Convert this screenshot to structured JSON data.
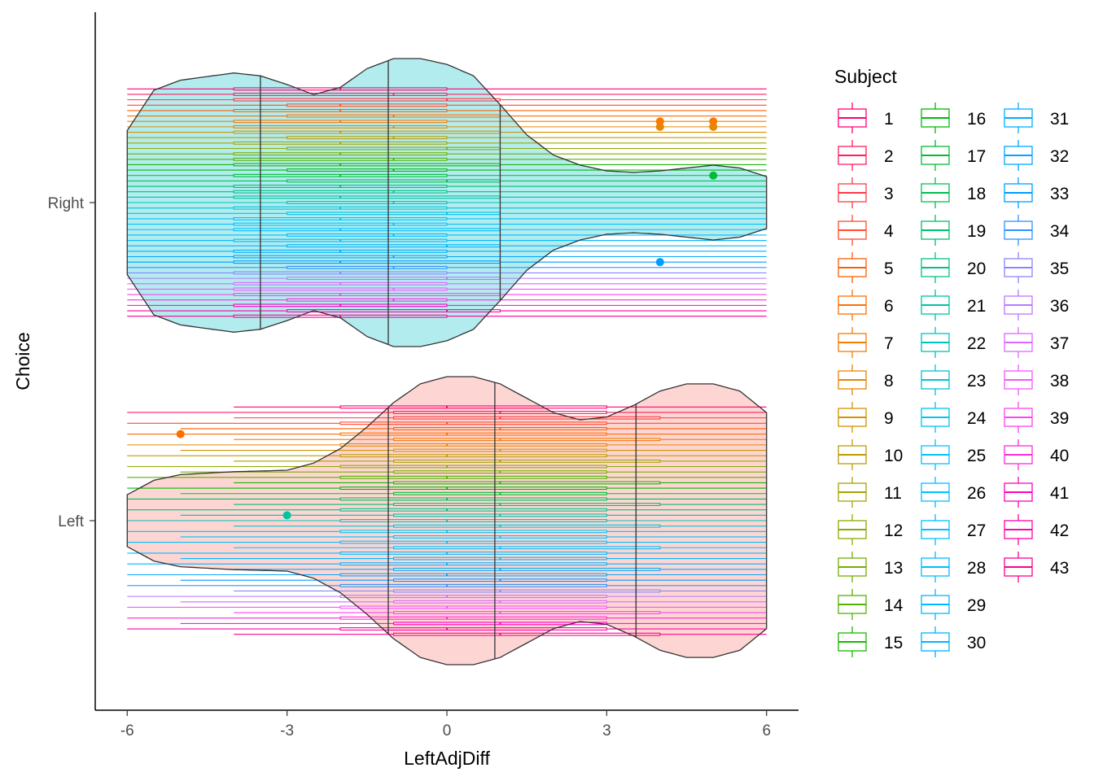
{
  "chart_data": {
    "type": "box-violin",
    "title": "",
    "xlabel": "LeftAdjDiff",
    "ylabel": "Choice",
    "xlim": [
      -6.6,
      6.6
    ],
    "x_ticks": [
      -6,
      -3,
      0,
      3,
      6
    ],
    "x_tick_labels": [
      "-6",
      "-3",
      "0",
      "3",
      "6"
    ],
    "categories": [
      "Left",
      "Right"
    ],
    "grid": false,
    "legend": {
      "title": "Subject",
      "placement": "right",
      "columns": 3,
      "entries": [
        "1",
        "2",
        "3",
        "4",
        "5",
        "6",
        "7",
        "8",
        "9",
        "10",
        "11",
        "12",
        "13",
        "14",
        "15",
        "16",
        "17",
        "18",
        "19",
        "20",
        "21",
        "22",
        "23",
        "24",
        "25",
        "26",
        "27",
        "28",
        "29",
        "30",
        "31",
        "32",
        "33",
        "34",
        "35",
        "36",
        "37",
        "38",
        "39",
        "40",
        "41",
        "42",
        "43"
      ]
    },
    "violins": [
      {
        "category": "Right",
        "fill": "#00c0c8",
        "fill_opacity": 0.3,
        "quantiles": [
          -3.5,
          -1.1,
          1.0
        ],
        "profile": [
          [
            -6,
            0.5
          ],
          [
            -5.5,
            0.78
          ],
          [
            -5,
            0.85
          ],
          [
            -4,
            0.9
          ],
          [
            -3.5,
            0.88
          ],
          [
            -3,
            0.82
          ],
          [
            -2.5,
            0.75
          ],
          [
            -2,
            0.8
          ],
          [
            -1.5,
            0.93
          ],
          [
            -1,
            1.0
          ],
          [
            -0.5,
            1.0
          ],
          [
            0,
            0.96
          ],
          [
            0.5,
            0.88
          ],
          [
            1,
            0.68
          ],
          [
            1.5,
            0.47
          ],
          [
            2,
            0.33
          ],
          [
            2.5,
            0.26
          ],
          [
            3,
            0.22
          ],
          [
            3.5,
            0.21
          ],
          [
            4,
            0.22
          ],
          [
            4.5,
            0.24
          ],
          [
            5,
            0.26
          ],
          [
            5.5,
            0.24
          ],
          [
            6,
            0.18
          ]
        ]
      },
      {
        "category": "Left",
        "fill": "#f8766d",
        "fill_opacity": 0.3,
        "quantiles": [
          -1.1,
          0.9,
          3.55
        ],
        "profile": [
          [
            -6,
            0.18
          ],
          [
            -5.5,
            0.28
          ],
          [
            -5,
            0.32
          ],
          [
            -4,
            0.34
          ],
          [
            -3,
            0.35
          ],
          [
            -2.5,
            0.4
          ],
          [
            -2,
            0.5
          ],
          [
            -1.5,
            0.65
          ],
          [
            -1,
            0.82
          ],
          [
            -0.5,
            0.95
          ],
          [
            0,
            1.0
          ],
          [
            0.5,
            1.0
          ],
          [
            1,
            0.95
          ],
          [
            1.5,
            0.85
          ],
          [
            2,
            0.75
          ],
          [
            2.5,
            0.7
          ],
          [
            3,
            0.72
          ],
          [
            3.5,
            0.8
          ],
          [
            4,
            0.9
          ],
          [
            4.5,
            0.95
          ],
          [
            5,
            0.95
          ],
          [
            5.5,
            0.9
          ],
          [
            6,
            0.75
          ]
        ]
      }
    ],
    "subject_boxes": {
      "Right": [
        [
          -6,
          -4,
          -2,
          0,
          6
        ],
        [
          -6,
          -4,
          -1,
          0,
          6
        ],
        [
          -6,
          -4,
          0,
          1,
          6
        ],
        [
          -6,
          -3,
          -2,
          0,
          6
        ],
        [
          -6,
          -4,
          -2,
          0,
          6
        ],
        [
          -6,
          -3,
          -1,
          1,
          6
        ],
        [
          -6,
          -4,
          -2,
          0,
          6
        ],
        [
          -6,
          -4,
          -1,
          0,
          6
        ],
        [
          -6,
          -4,
          -2,
          1,
          6
        ],
        [
          -6,
          -3,
          -1,
          0,
          6
        ],
        [
          -6,
          -4,
          -2,
          0,
          6
        ],
        [
          -6,
          -3,
          0,
          1,
          6
        ],
        [
          -6,
          -4,
          -2,
          0,
          6
        ],
        [
          -6,
          -4,
          -1,
          0,
          6
        ],
        [
          -6,
          -4,
          -2,
          1,
          6
        ],
        [
          -6,
          -3,
          -1,
          0,
          6
        ],
        [
          -6,
          -4,
          -2,
          0,
          6
        ],
        [
          -6,
          -3,
          0,
          1,
          6
        ],
        [
          -6,
          -4,
          -2,
          0,
          6
        ],
        [
          -6,
          -4,
          -1,
          0,
          6
        ],
        [
          -6,
          -4,
          -2,
          1,
          6
        ],
        [
          -6,
          -3,
          -1,
          0,
          6
        ],
        [
          -6,
          -4,
          -2,
          0,
          6
        ],
        [
          -6,
          -3,
          0,
          1,
          6
        ],
        [
          -6,
          -4,
          -2,
          0,
          6
        ],
        [
          -6,
          -4,
          -1,
          0,
          6
        ],
        [
          -6,
          -4,
          -2,
          1,
          6
        ],
        [
          -6,
          -3,
          -1,
          0,
          6
        ],
        [
          -6,
          -4,
          -2,
          0,
          6
        ],
        [
          -6,
          -3,
          0,
          1,
          6
        ],
        [
          -6,
          -4,
          -2,
          0,
          6
        ],
        [
          -6,
          -4,
          -1,
          0,
          6
        ],
        [
          -6,
          -4,
          -2,
          1,
          6
        ],
        [
          -6,
          -3,
          -1,
          0,
          6
        ],
        [
          -6,
          -4,
          -2,
          0,
          6
        ],
        [
          -6,
          -3,
          0,
          1,
          6
        ],
        [
          -6,
          -4,
          -2,
          0,
          6
        ],
        [
          -6,
          -4,
          -1,
          0,
          6
        ],
        [
          -6,
          -4,
          -2,
          1,
          6
        ],
        [
          -6,
          -3,
          -1,
          0,
          6
        ],
        [
          -6,
          -4,
          -2,
          0,
          6
        ],
        [
          -6,
          -3,
          0,
          1,
          6
        ],
        [
          -6,
          -4,
          -2,
          0,
          6
        ]
      ],
      "Left": [
        [
          -4,
          -2,
          0,
          3,
          6
        ],
        [
          -6,
          -1,
          1,
          3,
          6
        ],
        [
          -4,
          -1,
          1,
          4,
          6
        ],
        [
          -6,
          -2,
          0,
          3,
          6
        ],
        [
          -5,
          -1,
          1,
          3,
          6
        ],
        [
          -6,
          -2,
          0,
          3,
          6
        ],
        [
          -4,
          -1,
          1,
          4,
          6
        ],
        [
          -6,
          -2,
          0,
          3,
          6
        ],
        [
          -5,
          -1,
          1,
          3,
          6
        ],
        [
          -6,
          -2,
          0,
          3,
          6
        ],
        [
          -4,
          -1,
          1,
          4,
          6
        ],
        [
          -6,
          -2,
          0,
          3,
          6
        ],
        [
          -5,
          -1,
          1,
          3,
          6
        ],
        [
          -6,
          -2,
          0,
          3,
          6
        ],
        [
          -4,
          -1,
          1,
          4,
          6
        ],
        [
          -6,
          -2,
          0,
          3,
          6
        ],
        [
          -5,
          -1,
          1,
          3,
          6
        ],
        [
          -6,
          -2,
          0,
          3,
          6
        ],
        [
          -4,
          -1,
          1,
          4,
          6
        ],
        [
          -6,
          -2,
          0,
          3,
          6
        ],
        [
          -5,
          -1,
          1,
          3,
          6
        ],
        [
          -6,
          -2,
          0,
          3,
          6
        ],
        [
          -4,
          -1,
          1,
          4,
          6
        ],
        [
          -6,
          -2,
          0,
          3,
          6
        ],
        [
          -5,
          -1,
          1,
          3,
          6
        ],
        [
          -6,
          -2,
          0,
          3,
          6
        ],
        [
          -4,
          -1,
          1,
          4,
          6
        ],
        [
          -6,
          -2,
          0,
          3,
          6
        ],
        [
          -5,
          -1,
          1,
          3,
          6
        ],
        [
          -6,
          -2,
          0,
          3,
          6
        ],
        [
          -4,
          -1,
          1,
          4,
          6
        ],
        [
          -6,
          -2,
          0,
          3,
          6
        ],
        [
          -5,
          -1,
          1,
          3,
          6
        ],
        [
          -6,
          -2,
          0,
          3,
          6
        ],
        [
          -4,
          -1,
          1,
          4,
          6
        ],
        [
          -6,
          -2,
          0,
          3,
          6
        ],
        [
          -5,
          -1,
          1,
          3,
          6
        ],
        [
          -6,
          -2,
          0,
          3,
          6
        ],
        [
          -4,
          -1,
          1,
          4,
          6
        ],
        [
          -6,
          -2,
          0,
          3,
          6
        ],
        [
          -5,
          -1,
          1,
          3,
          6
        ],
        [
          -6,
          -2,
          0,
          3,
          6
        ],
        [
          -4,
          -1,
          1,
          4,
          6
        ]
      ]
    },
    "outliers": [
      {
        "category": "Right",
        "subject": 33,
        "x": 4
      },
      {
        "category": "Right",
        "subject": 17,
        "x": 5
      },
      {
        "category": "Right",
        "subject": 8,
        "x": 5
      },
      {
        "category": "Right",
        "subject": 8,
        "x": 4
      },
      {
        "category": "Right",
        "subject": 7,
        "x": 4
      },
      {
        "category": "Right",
        "subject": 7,
        "x": 5
      },
      {
        "category": "Left",
        "subject": 21,
        "x": -3
      },
      {
        "category": "Left",
        "subject": 6,
        "x": -5
      }
    ]
  }
}
